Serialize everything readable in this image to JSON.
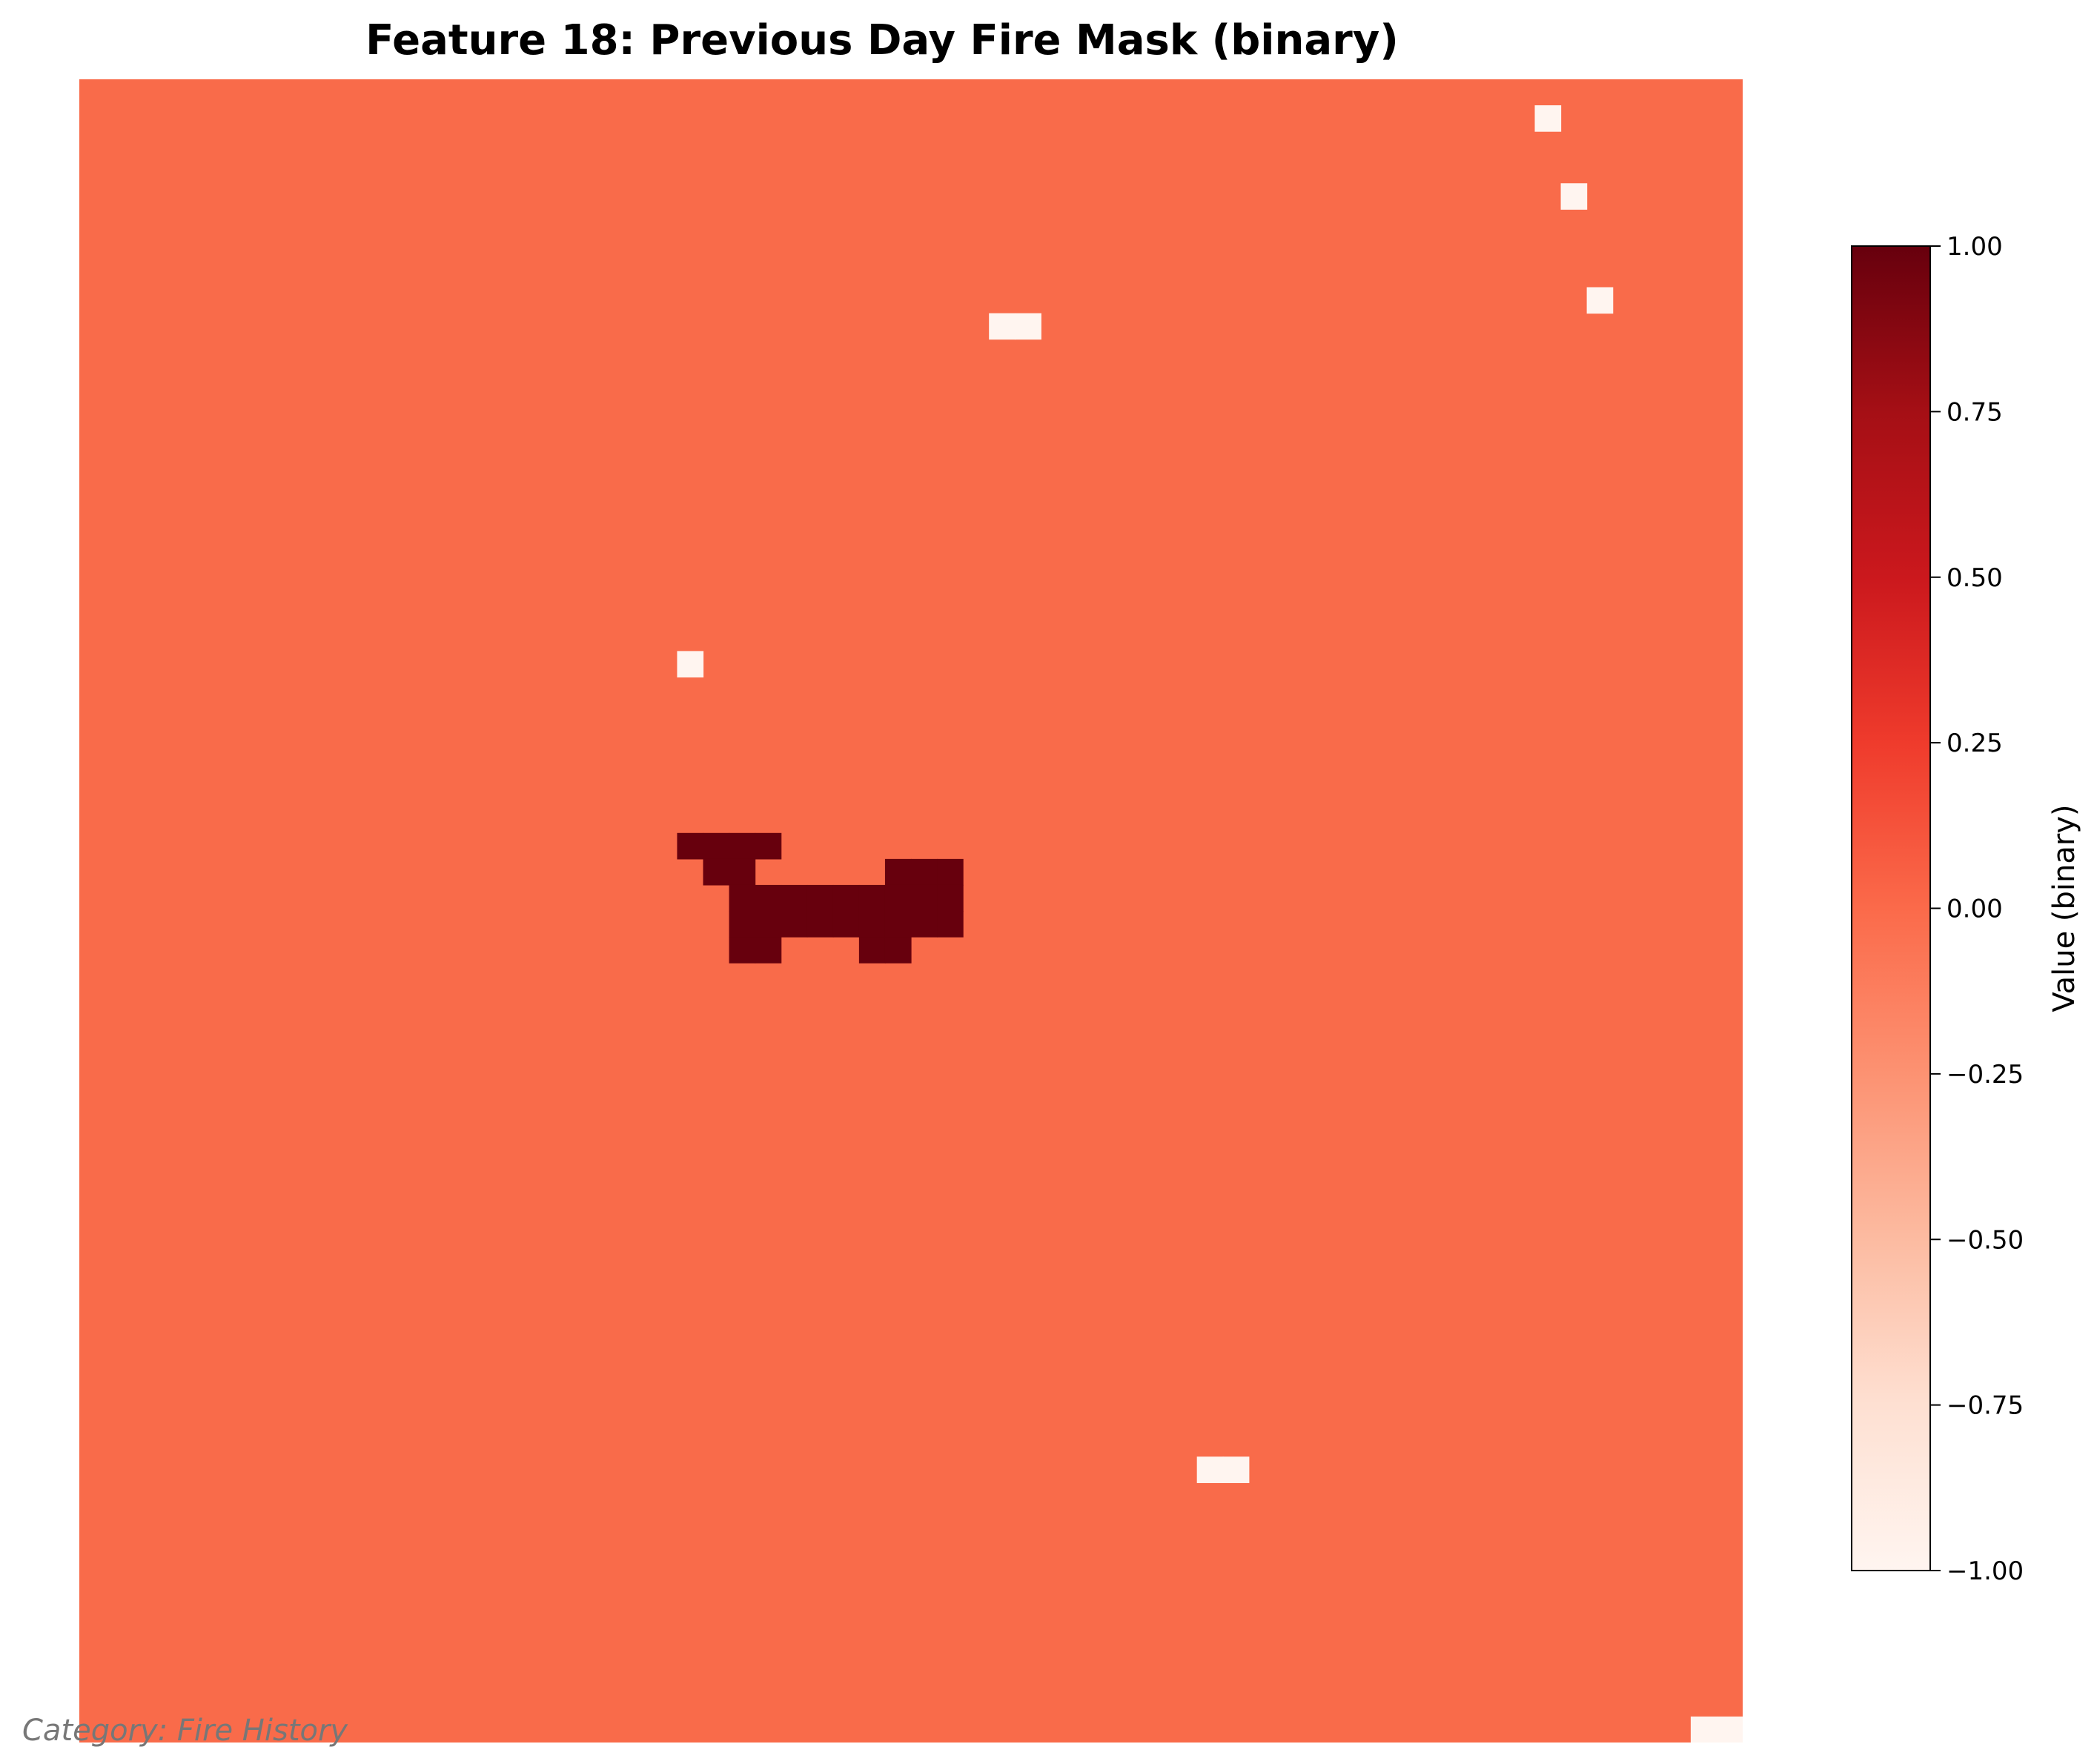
{
  "colors": {
    "zero": "#f96b4a",
    "neg_one": "#fff5f0",
    "one": "#67000d",
    "colorbar_stops": [
      "#fff5f0",
      "#fee0d2",
      "#fcbba1",
      "#fc9272",
      "#fb6a4a",
      "#ef3b2c",
      "#cb181d",
      "#a50f15",
      "#67000d"
    ]
  },
  "chart_data": {
    "type": "heatmap",
    "title": "Feature 18: Previous Day Fire Mask (binary)",
    "grid_size": [
      64,
      64
    ],
    "background_value": 0,
    "cells": [
      {
        "row": 1,
        "col": 56,
        "value": -1
      },
      {
        "row": 4,
        "col": 57,
        "value": -1
      },
      {
        "row": 8,
        "col": 58,
        "value": -1
      },
      {
        "row": 9,
        "col": 35,
        "value": -1
      },
      {
        "row": 9,
        "col": 36,
        "value": -1
      },
      {
        "row": 22,
        "col": 23,
        "value": -1
      },
      {
        "row": 53,
        "col": 43,
        "value": -1
      },
      {
        "row": 53,
        "col": 44,
        "value": -1
      },
      {
        "row": 63,
        "col": 62,
        "value": -1
      },
      {
        "row": 63,
        "col": 63,
        "value": -1
      },
      {
        "row": 29,
        "col": 23,
        "value": 1
      },
      {
        "row": 29,
        "col": 24,
        "value": 1
      },
      {
        "row": 29,
        "col": 25,
        "value": 1
      },
      {
        "row": 29,
        "col": 26,
        "value": 1
      },
      {
        "row": 30,
        "col": 24,
        "value": 1
      },
      {
        "row": 30,
        "col": 25,
        "value": 1
      },
      {
        "row": 30,
        "col": 31,
        "value": 1
      },
      {
        "row": 30,
        "col": 32,
        "value": 1
      },
      {
        "row": 30,
        "col": 33,
        "value": 1
      },
      {
        "row": 31,
        "col": 25,
        "value": 1
      },
      {
        "row": 31,
        "col": 26,
        "value": 1
      },
      {
        "row": 31,
        "col": 27,
        "value": 1
      },
      {
        "row": 31,
        "col": 28,
        "value": 1
      },
      {
        "row": 31,
        "col": 29,
        "value": 1
      },
      {
        "row": 31,
        "col": 30,
        "value": 1
      },
      {
        "row": 31,
        "col": 31,
        "value": 1
      },
      {
        "row": 31,
        "col": 32,
        "value": 1
      },
      {
        "row": 31,
        "col": 33,
        "value": 1
      },
      {
        "row": 32,
        "col": 25,
        "value": 1
      },
      {
        "row": 32,
        "col": 26,
        "value": 1
      },
      {
        "row": 32,
        "col": 27,
        "value": 1
      },
      {
        "row": 32,
        "col": 28,
        "value": 1
      },
      {
        "row": 32,
        "col": 29,
        "value": 1
      },
      {
        "row": 32,
        "col": 30,
        "value": 1
      },
      {
        "row": 32,
        "col": 31,
        "value": 1
      },
      {
        "row": 32,
        "col": 32,
        "value": 1
      },
      {
        "row": 32,
        "col": 33,
        "value": 1
      },
      {
        "row": 33,
        "col": 25,
        "value": 1
      },
      {
        "row": 33,
        "col": 26,
        "value": 1
      },
      {
        "row": 33,
        "col": 30,
        "value": 1
      },
      {
        "row": 33,
        "col": 31,
        "value": 1
      }
    ],
    "colorbar": {
      "label": "Value (binary)",
      "range": [
        -1.0,
        1.0
      ],
      "ticks": [
        1.0,
        0.75,
        0.5,
        0.25,
        0.0,
        -0.25,
        -0.5,
        -0.75,
        -1.0
      ],
      "tick_labels": [
        "1.00",
        "0.75",
        "0.50",
        "0.25",
        "0.00",
        "−0.25",
        "−0.50",
        "−0.75",
        "−1.00"
      ]
    },
    "axes_visible": false
  },
  "footer": {
    "category_note": "Category: Fire History"
  }
}
